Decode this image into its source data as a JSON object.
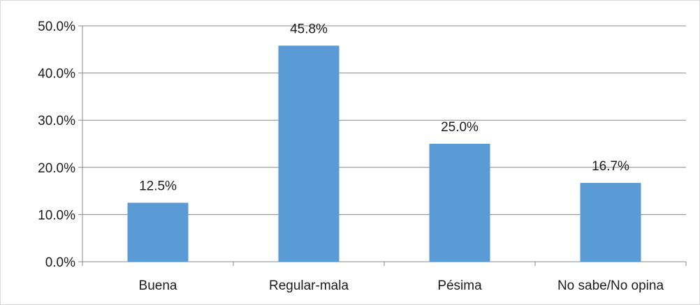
{
  "chart_data": {
    "type": "bar",
    "categories": [
      "Buena",
      "Regular-mala",
      "Pésima",
      "No sabe/No opina"
    ],
    "values": [
      12.5,
      45.8,
      25.0,
      16.7
    ],
    "data_labels": [
      "12.5%",
      "45.8%",
      "25.0%",
      "16.7%"
    ],
    "title": "",
    "xlabel": "",
    "ylabel": "",
    "ylim": [
      0,
      50
    ],
    "yticks": [
      0,
      10,
      20,
      30,
      40,
      50
    ],
    "ytick_labels": [
      "0.0%",
      "10.0%",
      "20.0%",
      "30.0%",
      "40.0%",
      "50.0%"
    ],
    "grid": true,
    "legend": "none",
    "colors": {
      "bar": "#5b9bd5",
      "grid": "#888888",
      "axis": "#888888"
    }
  }
}
